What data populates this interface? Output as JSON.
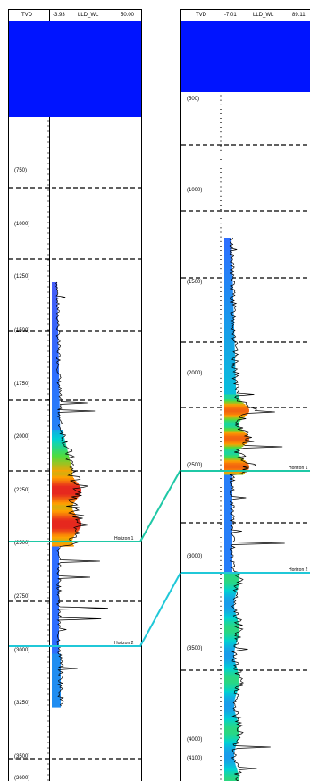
{
  "well_left": {
    "header": {
      "depth_label": "TVD",
      "log_min": "-3.93",
      "log_name": "LLD_WL",
      "log_max": "50.00"
    },
    "depth_ticks": [
      {
        "label": "(750)",
        "depth": 750
      },
      {
        "label": "(1000)",
        "depth": 1000
      },
      {
        "label": "(1250)",
        "depth": 1250
      },
      {
        "label": "(1500)",
        "depth": 1500
      },
      {
        "label": "(1750)",
        "depth": 1750
      },
      {
        "label": "(2000)",
        "depth": 2000
      },
      {
        "label": "(2250)",
        "depth": 2250
      },
      {
        "label": "(2500)",
        "depth": 2500
      },
      {
        "label": "(2750)",
        "depth": 2750
      },
      {
        "label": "(3000)",
        "depth": 3000
      },
      {
        "label": "(3250)",
        "depth": 3250
      },
      {
        "label": "(3500)",
        "depth": 3500
      },
      {
        "label": "(3600)",
        "depth": 3600
      }
    ],
    "horizons": [
      {
        "label": "Horizon 1",
        "color": "#1fc8a6"
      },
      {
        "label": "Horizon 2",
        "color": "#20c8d8"
      }
    ]
  },
  "well_right": {
    "header": {
      "depth_label": "TVD",
      "log_min": "-7.01",
      "log_name": "LLD_WL",
      "log_max": "89.11"
    },
    "depth_ticks": [
      {
        "label": "(500)",
        "depth": 500
      },
      {
        "label": "(1000)",
        "depth": 1000
      },
      {
        "label": "(1500)",
        "depth": 1500
      },
      {
        "label": "(2000)",
        "depth": 2000
      },
      {
        "label": "(2500)",
        "depth": 2500
      },
      {
        "label": "(3000)",
        "depth": 3000
      },
      {
        "label": "(3500)",
        "depth": 3500
      },
      {
        "label": "(4000)",
        "depth": 4000
      },
      {
        "label": "(4100)",
        "depth": 4100
      }
    ],
    "horizons": [
      {
        "label": "Horizon 1",
        "color": "#1fc8a6"
      },
      {
        "label": "Horizon 2",
        "color": "#20c8d8"
      }
    ]
  },
  "colors": {
    "header_fill": "#0014ff",
    "horizon_1": "#1fc8a6",
    "horizon_2": "#20c8d8",
    "dashed": "#000000"
  }
}
